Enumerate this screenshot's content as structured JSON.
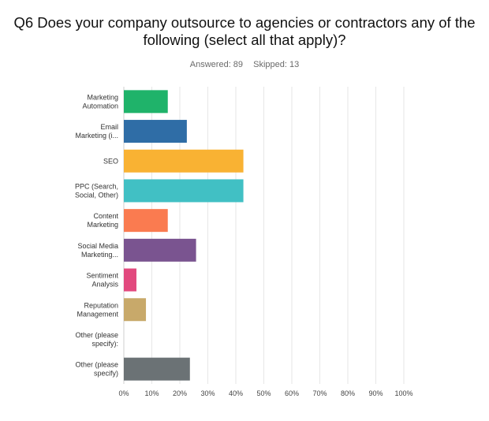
{
  "question": {
    "title": "Q6 Does your company outsource to agencies or contractors any of the following (select all that apply)?"
  },
  "stats": {
    "answered": "Answered: 89",
    "skipped": "Skipped: 13"
  },
  "chart_data": {
    "type": "bar",
    "orientation": "horizontal",
    "categories": [
      [
        "Marketing",
        "Automation"
      ],
      [
        "Email",
        "Marketing (i..."
      ],
      [
        "SEO"
      ],
      [
        "PPC (Search,",
        "Social, Other)"
      ],
      [
        "Content",
        "Marketing"
      ],
      [
        "Social Media",
        "Marketing..."
      ],
      [
        "Sentiment",
        "Analysis"
      ],
      [
        "Reputation",
        "Management"
      ],
      [
        "Other (please",
        "specify):"
      ],
      [
        "Other (please",
        "specify)"
      ]
    ],
    "values": [
      15.7,
      22.5,
      42.7,
      42.7,
      15.7,
      25.8,
      4.5,
      7.9,
      0,
      23.6
    ],
    "colors": [
      "#1fb36a",
      "#2f6da6",
      "#f9b233",
      "#41c0c4",
      "#fa7b50",
      "#7a5490",
      "#e2497e",
      "#c8a96a",
      "#d3d3d3",
      "#6b7275"
    ],
    "xlim": [
      0,
      100
    ],
    "x_ticks": [
      "0%",
      "10%",
      "20%",
      "30%",
      "40%",
      "50%",
      "60%",
      "70%",
      "80%",
      "90%",
      "100%"
    ],
    "grid": true
  }
}
